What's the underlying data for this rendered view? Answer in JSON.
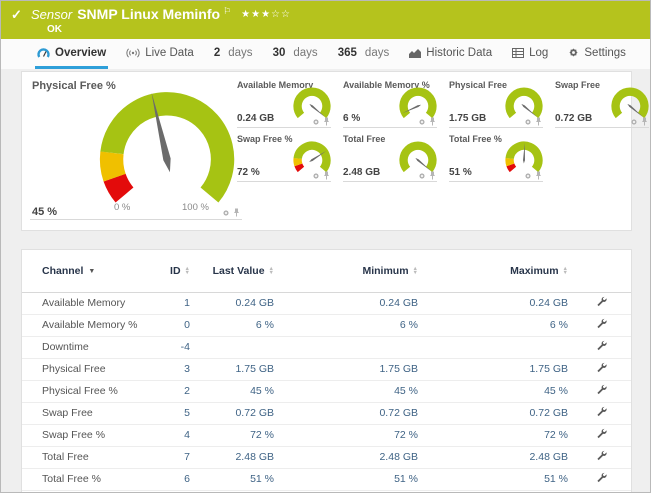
{
  "header": {
    "check_glyph": "✓",
    "kind": "Sensor",
    "title": "SNMP Linux Meminfo",
    "flag_glyph": "⚐",
    "stars_filled_glyphs": "★★★",
    "stars_empty_glyphs": "☆☆",
    "status": "OK"
  },
  "tabs": [
    {
      "label": "Overview",
      "icon": "overview-gauge-icon",
      "active": true
    },
    {
      "label": "Live Data",
      "icon": "live-broadcast-icon"
    },
    {
      "num": "2",
      "unit": "days"
    },
    {
      "num": "30",
      "unit": "days"
    },
    {
      "num": "365",
      "unit": "days"
    },
    {
      "label": "Historic Data",
      "icon": "bar-chart-icon"
    },
    {
      "label": "Log",
      "icon": "log-list-icon"
    },
    {
      "label": "Settings",
      "icon": "gear-icon"
    }
  ],
  "gauges": {
    "main": {
      "title": "Physical Free %",
      "value_label": "45 %",
      "percent": 45,
      "min_label": "0 %",
      "max_label": "100 %",
      "has_limits": true
    },
    "small": [
      {
        "title": "Available Memory",
        "value_label": "0.24 GB",
        "percent": 100,
        "has_limits": false
      },
      {
        "title": "Available Memory %",
        "value_label": "6 %",
        "percent": 6,
        "has_limits": false
      },
      {
        "title": "Physical Free",
        "value_label": "1.75 GB",
        "percent": 100,
        "has_limits": false
      },
      {
        "title": "Swap Free",
        "value_label": "0.72 GB",
        "percent": 100,
        "has_limits": false
      },
      {
        "title": "Swap Free %",
        "value_label": "72 %",
        "percent": 72,
        "has_limits": true
      },
      {
        "title": "Total Free",
        "value_label": "2.48 GB",
        "percent": 100,
        "has_limits": false
      },
      {
        "title": "Total Free %",
        "value_label": "51 %",
        "percent": 51,
        "has_limits": true
      }
    ]
  },
  "table": {
    "columns": [
      {
        "label": "Channel",
        "sorted": true
      },
      {
        "label": "ID"
      },
      {
        "label": "Last Value"
      },
      {
        "label": "Minimum"
      },
      {
        "label": "Maximum"
      }
    ],
    "rows": [
      {
        "channel": "Available Memory",
        "id": "1",
        "last": "0.24 GB",
        "min": "0.24 GB",
        "max": "0.24 GB"
      },
      {
        "channel": "Available Memory %",
        "id": "0",
        "last": "6 %",
        "min": "6 %",
        "max": "6 %"
      },
      {
        "channel": "Downtime",
        "id": "-4",
        "last": "",
        "min": "",
        "max": ""
      },
      {
        "channel": "Physical Free",
        "id": "3",
        "last": "1.75 GB",
        "min": "1.75 GB",
        "max": "1.75 GB"
      },
      {
        "channel": "Physical Free %",
        "id": "2",
        "last": "45 %",
        "min": "45 %",
        "max": "45 %"
      },
      {
        "channel": "Swap Free",
        "id": "5",
        "last": "0.72 GB",
        "min": "0.72 GB",
        "max": "0.72 GB"
      },
      {
        "channel": "Swap Free %",
        "id": "4",
        "last": "72 %",
        "min": "72 %",
        "max": "72 %"
      },
      {
        "channel": "Total Free",
        "id": "7",
        "last": "2.48 GB",
        "min": "2.48 GB",
        "max": "2.48 GB"
      },
      {
        "channel": "Total Free %",
        "id": "6",
        "last": "51 %",
        "min": "51 %",
        "max": "51 %"
      }
    ]
  },
  "colors": {
    "header_green": "#b5c31d",
    "gauge_green": "#a6c313",
    "warning_yellow": "#f0c000",
    "error_red": "#e30b0b",
    "needle_gray": "#6b6b6b",
    "value_blue": "#3f6385",
    "active_tab_blue": "#2e9fd9"
  }
}
